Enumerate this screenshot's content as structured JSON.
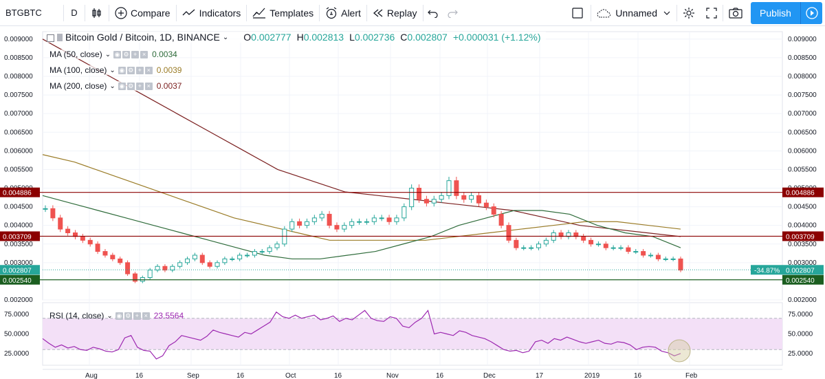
{
  "toolbar": {
    "symbol": "BTGBTC",
    "interval": "D",
    "compare": "Compare",
    "indicators": "Indicators",
    "templates": "Templates",
    "alert": "Alert",
    "replay": "Replay",
    "layout_name": "Unnamed",
    "publish": "Publish"
  },
  "legend": {
    "title": "Bitcoin Gold / Bitcoin, 1D, BINANCE",
    "o_label": "O",
    "o": "0.002777",
    "h_label": "H",
    "h": "0.002813",
    "l_label": "L",
    "l": "0.002736",
    "c_label": "C",
    "c": "0.002807",
    "change": "+0.000031 (+1.12%)",
    "ma50_label": "MA (50, close)",
    "ma50_val": "0.0034",
    "ma100_label": "MA (100, close)",
    "ma100_val": "0.0039",
    "ma200_label": "MA (200, close)",
    "ma200_val": "0.0037",
    "rsi_label": "RSI (14, close)",
    "rsi_val": "23.5564"
  },
  "colors": {
    "up": "#26a69a",
    "down": "#ef5350",
    "ma50": "#2e6b3a",
    "ma100": "#9a7b26",
    "ma200": "#7a1e1e",
    "hline_red": "#8b0000",
    "hline_green": "#1b5e20",
    "rsi": "#9c27b0",
    "rsi_band": "#f3e0f7",
    "accent": "#2196f3"
  },
  "price_axis": {
    "ticks": [
      "0.009000",
      "0.008500",
      "0.008000",
      "0.007500",
      "0.007000",
      "0.006500",
      "0.006000",
      "0.005500",
      "0.005000",
      "0.004500",
      "0.004000",
      "0.003500",
      "0.003000",
      "0.002000"
    ],
    "min": 0.002,
    "max": 0.0092
  },
  "time_axis": {
    "labels": [
      "Aug",
      "16",
      "Sep",
      "16",
      "Oct",
      "16",
      "Nov",
      "16",
      "Dec",
      "17",
      "2019",
      "16",
      "Feb"
    ]
  },
  "rsi_axis": {
    "ticks": [
      "75.0000",
      "50.0000",
      "25.0000"
    ]
  },
  "hlines": [
    {
      "price": "0.004886",
      "value": 0.004886,
      "color": "red"
    },
    {
      "price": "0.003709",
      "value": 0.003709,
      "color": "red"
    },
    {
      "price": "0.002540",
      "value": 0.00254,
      "color": "green"
    }
  ],
  "last_price": {
    "price": "0.002807",
    "value": 0.002807,
    "change_pct": "-34.87%"
  },
  "chart_data": {
    "type": "candlestick",
    "title": "Bitcoin Gold / Bitcoin, 1D, BINANCE",
    "close_series": [
      0.00445,
      0.0042,
      0.0039,
      0.0038,
      0.0037,
      0.0036,
      0.0035,
      0.0033,
      0.0032,
      0.0031,
      0.003,
      0.0027,
      0.0025,
      0.0026,
      0.0028,
      0.0029,
      0.0028,
      0.0029,
      0.003,
      0.0031,
      0.0032,
      0.003,
      0.0029,
      0.003,
      0.0031,
      0.0031,
      0.0032,
      0.0032,
      0.0033,
      0.0033,
      0.0034,
      0.0035,
      0.0039,
      0.0041,
      0.004,
      0.0041,
      0.0042,
      0.0043,
      0.004,
      0.0039,
      0.004,
      0.0041,
      0.0041,
      0.0041,
      0.0042,
      0.0042,
      0.0041,
      0.0042,
      0.0045,
      0.005,
      0.0047,
      0.0046,
      0.0047,
      0.0048,
      0.0052,
      0.0048,
      0.0047,
      0.0048,
      0.0046,
      0.0045,
      0.0043,
      0.004,
      0.0036,
      0.0034,
      0.0034,
      0.0034,
      0.0035,
      0.0036,
      0.0038,
      0.0037,
      0.0038,
      0.0037,
      0.0036,
      0.0035,
      0.0035,
      0.0034,
      0.0034,
      0.0034,
      0.0033,
      0.0033,
      0.0032,
      0.0032,
      0.0031,
      0.0031,
      0.0031,
      0.0028
    ],
    "ma50": [
      0.0048,
      0.0046,
      0.0044,
      0.0042,
      0.004,
      0.0038,
      0.0036,
      0.0034,
      0.0032,
      0.0031,
      0.0031,
      0.0032,
      0.0033,
      0.0035,
      0.0037,
      0.004,
      0.0042,
      0.0044,
      0.0044,
      0.0043,
      0.004,
      0.0038,
      0.0037,
      0.0034
    ],
    "ma100": [
      0.0059,
      0.0057,
      0.0054,
      0.0051,
      0.0048,
      0.0045,
      0.0042,
      0.004,
      0.0038,
      0.0036,
      0.0036,
      0.0036,
      0.0036,
      0.0037,
      0.0038,
      0.0039,
      0.004,
      0.0041,
      0.0041,
      0.004,
      0.0039
    ],
    "ma200": [
      0.009,
      0.0085,
      0.008,
      0.0075,
      0.007,
      0.0065,
      0.006,
      0.0055,
      0.0052,
      0.0049,
      0.0048,
      0.0047,
      0.0046,
      0.0045,
      0.0044,
      0.0042,
      0.004,
      0.0039,
      0.0038,
      0.0037
    ],
    "rsi": [
      44,
      38,
      33,
      36,
      32,
      34,
      30,
      29,
      33,
      31,
      28,
      27,
      30,
      45,
      48,
      33,
      29,
      28,
      18,
      22,
      35,
      40,
      48,
      46,
      44,
      42,
      47,
      55,
      52,
      50,
      48,
      46,
      52,
      50,
      55,
      60,
      65,
      78,
      72,
      70,
      74,
      70,
      72,
      74,
      68,
      70,
      73,
      66,
      70,
      68,
      74,
      80,
      70,
      67,
      66,
      72,
      70,
      60,
      58,
      65,
      70,
      80,
      50,
      52,
      50,
      48,
      54,
      52,
      48,
      46,
      44,
      40,
      35,
      30,
      28,
      29,
      26,
      28,
      40,
      42,
      38,
      44,
      42,
      46,
      43,
      40,
      38,
      40,
      42,
      38,
      37,
      40,
      39,
      36,
      30,
      33,
      34,
      33,
      28,
      26,
      22,
      25
    ]
  }
}
